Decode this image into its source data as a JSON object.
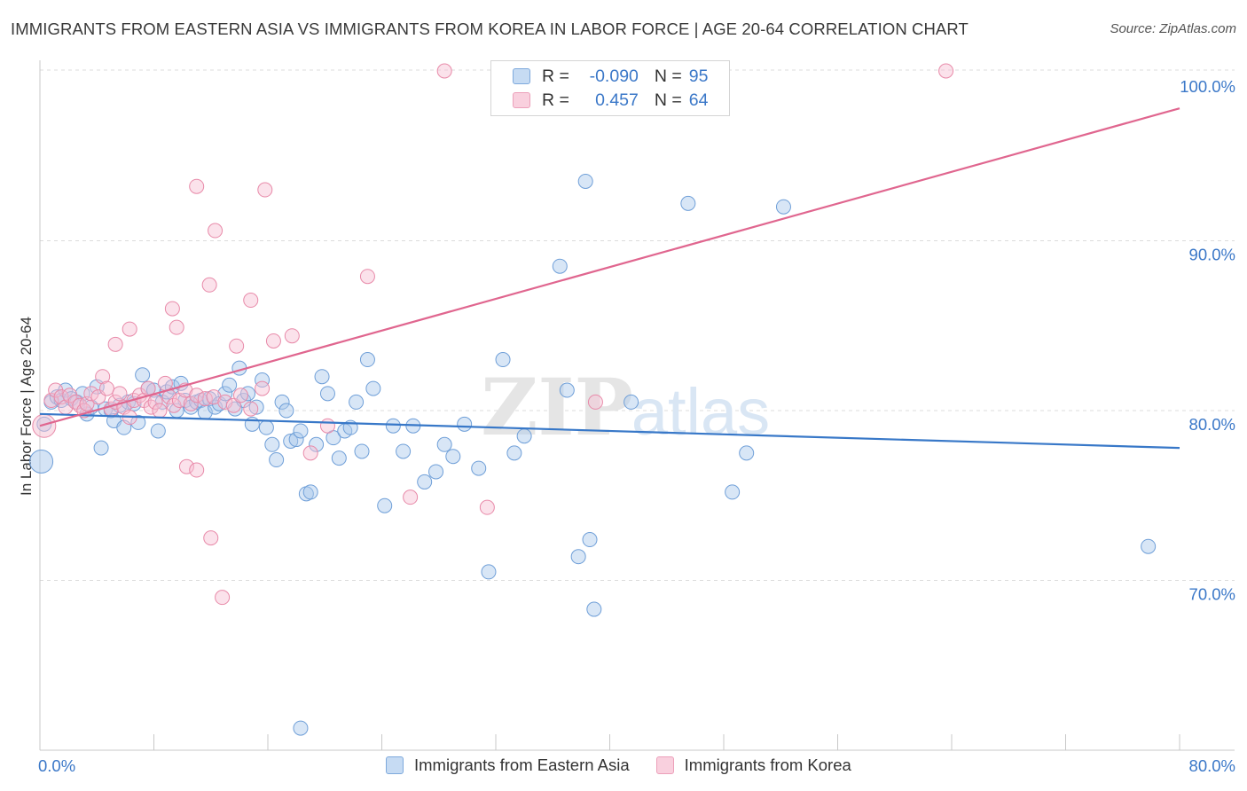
{
  "header": {
    "title": "IMMIGRANTS FROM EASTERN ASIA VS IMMIGRANTS FROM KOREA IN LABOR FORCE | AGE 20-64 CORRELATION CHART",
    "source": "Source: ZipAtlas.com"
  },
  "watermark": {
    "zip": "ZIP",
    "atlas": "atlas"
  },
  "stats_box": {
    "rows": [
      {
        "r_label": "R =",
        "r_value": "-0.090",
        "n_label": "N =",
        "n_value": "95",
        "color": "#9ec3eb"
      },
      {
        "r_label": "R =",
        "r_value": "0.457",
        "n_label": "N =",
        "n_value": "64",
        "color": "#f4b2c8"
      }
    ]
  },
  "legend": {
    "items": [
      {
        "label": "Immigrants from Eastern Asia",
        "color": "#9ec3eb"
      },
      {
        "label": "Immigrants from Korea",
        "color": "#f4b2c8"
      }
    ]
  },
  "colors": {
    "blue_fill": "#a9c8ec",
    "blue_stroke": "#6f9fd8",
    "blue_line": "#3878c8",
    "pink_fill": "#f6bfd2",
    "pink_stroke": "#e88aa9",
    "pink_line": "#e0668f",
    "tick_label": "#3b78c8",
    "grid": "#dcdcdc"
  },
  "chart_data": {
    "type": "scatter",
    "title": "IMMIGRANTS FROM EASTERN ASIA VS IMMIGRANTS FROM KOREA IN LABOR FORCE | AGE 20-64 CORRELATION CHART",
    "xlabel": "",
    "ylabel": "In Labor Force | Age 20-64",
    "xlim": [
      0,
      80
    ],
    "ylim": [
      60,
      102
    ],
    "x_tick_labels": [
      {
        "value": 0,
        "label": "0.0%"
      },
      {
        "value": 80,
        "label": "80.0%"
      }
    ],
    "y_tick_labels": [
      {
        "value": 70,
        "label": "70.0%"
      },
      {
        "value": 80,
        "label": "80.0%"
      },
      {
        "value": 90,
        "label": "90.0%"
      },
      {
        "value": 100,
        "label": "100.0%"
      }
    ],
    "grid": "horizontal dashed",
    "legend_position": "bottom-center",
    "series": [
      {
        "name": "Immigrants from Eastern Asia",
        "r": -0.09,
        "n": 95,
        "trend": {
          "x": [
            0,
            80
          ],
          "y": [
            79.8,
            77.8
          ]
        },
        "points": [
          [
            0.1,
            77.0
          ],
          [
            0.3,
            79.2
          ],
          [
            0.8,
            80.5
          ],
          [
            1.2,
            80.8
          ],
          [
            1.5,
            80.6
          ],
          [
            1.8,
            81.2
          ],
          [
            2.2,
            80.7
          ],
          [
            2.6,
            80.5
          ],
          [
            3.0,
            81.0
          ],
          [
            3.3,
            79.8
          ],
          [
            3.6,
            80.2
          ],
          [
            4.0,
            81.4
          ],
          [
            4.3,
            77.8
          ],
          [
            4.6,
            80.1
          ],
          [
            5.0,
            80.0
          ],
          [
            5.2,
            79.4
          ],
          [
            5.6,
            80.3
          ],
          [
            5.9,
            79.0
          ],
          [
            6.2,
            80.5
          ],
          [
            6.6,
            80.4
          ],
          [
            6.9,
            79.3
          ],
          [
            7.2,
            82.1
          ],
          [
            7.6,
            81.3
          ],
          [
            8.0,
            81.2
          ],
          [
            8.3,
            78.8
          ],
          [
            8.6,
            80.5
          ],
          [
            8.9,
            81.1
          ],
          [
            9.3,
            81.4
          ],
          [
            9.6,
            80.0
          ],
          [
            9.9,
            81.6
          ],
          [
            10.2,
            80.6
          ],
          [
            10.6,
            80.2
          ],
          [
            11.0,
            80.5
          ],
          [
            11.3,
            80.6
          ],
          [
            11.6,
            79.9
          ],
          [
            11.9,
            80.7
          ],
          [
            12.3,
            80.2
          ],
          [
            12.6,
            80.4
          ],
          [
            13.0,
            81.0
          ],
          [
            13.3,
            81.5
          ],
          [
            13.7,
            80.1
          ],
          [
            14.0,
            82.5
          ],
          [
            14.3,
            80.6
          ],
          [
            14.6,
            81.0
          ],
          [
            14.9,
            79.2
          ],
          [
            15.2,
            80.2
          ],
          [
            15.6,
            81.8
          ],
          [
            15.9,
            79.0
          ],
          [
            16.3,
            78.0
          ],
          [
            16.6,
            77.1
          ],
          [
            17.0,
            80.5
          ],
          [
            17.3,
            80.0
          ],
          [
            17.6,
            78.2
          ],
          [
            18.0,
            78.3
          ],
          [
            18.3,
            78.8
          ],
          [
            18.7,
            75.1
          ],
          [
            19.0,
            75.2
          ],
          [
            19.4,
            78.0
          ],
          [
            19.8,
            82.0
          ],
          [
            20.2,
            81.0
          ],
          [
            20.6,
            78.4
          ],
          [
            21.0,
            77.2
          ],
          [
            21.4,
            78.8
          ],
          [
            21.8,
            79.0
          ],
          [
            22.2,
            80.5
          ],
          [
            22.6,
            77.6
          ],
          [
            23.0,
            83.0
          ],
          [
            23.4,
            81.3
          ],
          [
            24.2,
            74.4
          ],
          [
            24.8,
            79.1
          ],
          [
            25.5,
            77.6
          ],
          [
            26.2,
            79.1
          ],
          [
            27.0,
            75.8
          ],
          [
            27.8,
            76.4
          ],
          [
            28.4,
            78.0
          ],
          [
            29.0,
            77.3
          ],
          [
            29.8,
            79.2
          ],
          [
            30.8,
            76.6
          ],
          [
            31.5,
            70.5
          ],
          [
            32.5,
            83.0
          ],
          [
            33.3,
            77.5
          ],
          [
            34.0,
            78.5
          ],
          [
            36.5,
            88.5
          ],
          [
            37.0,
            81.2
          ],
          [
            37.8,
            71.4
          ],
          [
            38.3,
            93.5
          ],
          [
            38.6,
            72.4
          ],
          [
            38.9,
            68.3
          ],
          [
            41.5,
            80.5
          ],
          [
            45.5,
            92.2
          ],
          [
            48.6,
            75.2
          ],
          [
            49.6,
            77.5
          ],
          [
            52.2,
            92.0
          ],
          [
            77.8,
            72.0
          ],
          [
            18.3,
            61.3
          ]
        ]
      },
      {
        "name": "Immigrants from Korea",
        "r": 0.457,
        "n": 64,
        "trend": {
          "x": [
            0,
            80
          ],
          "y": [
            79.1,
            97.8
          ]
        },
        "points": [
          [
            0.3,
            79.1
          ],
          [
            0.8,
            80.6
          ],
          [
            1.1,
            81.2
          ],
          [
            1.5,
            80.8
          ],
          [
            1.8,
            80.2
          ],
          [
            2.1,
            80.9
          ],
          [
            2.5,
            80.5
          ],
          [
            2.8,
            80.3
          ],
          [
            3.1,
            80.0
          ],
          [
            3.3,
            80.4
          ],
          [
            3.6,
            81.0
          ],
          [
            4.1,
            80.8
          ],
          [
            4.4,
            82.0
          ],
          [
            4.7,
            81.3
          ],
          [
            5.0,
            80.1
          ],
          [
            5.3,
            80.5
          ],
          [
            5.6,
            81.0
          ],
          [
            5.9,
            80.2
          ],
          [
            6.3,
            79.6
          ],
          [
            6.6,
            80.6
          ],
          [
            7.0,
            80.9
          ],
          [
            7.3,
            80.6
          ],
          [
            7.6,
            81.3
          ],
          [
            7.8,
            80.2
          ],
          [
            8.1,
            80.5
          ],
          [
            8.4,
            80.0
          ],
          [
            8.8,
            81.6
          ],
          [
            9.1,
            80.8
          ],
          [
            9.4,
            80.3
          ],
          [
            9.8,
            80.6
          ],
          [
            10.2,
            81.2
          ],
          [
            10.6,
            80.4
          ],
          [
            11.0,
            80.9
          ],
          [
            11.6,
            80.7
          ],
          [
            12.2,
            80.8
          ],
          [
            13.0,
            80.5
          ],
          [
            13.6,
            80.3
          ],
          [
            14.1,
            80.9
          ],
          [
            14.8,
            80.1
          ],
          [
            15.6,
            81.3
          ],
          [
            5.3,
            83.9
          ],
          [
            6.3,
            84.8
          ],
          [
            9.3,
            86.0
          ],
          [
            9.6,
            84.9
          ],
          [
            11.0,
            93.2
          ],
          [
            11.9,
            87.4
          ],
          [
            12.3,
            90.6
          ],
          [
            13.8,
            83.8
          ],
          [
            14.8,
            86.5
          ],
          [
            15.8,
            93.0
          ],
          [
            16.4,
            84.1
          ],
          [
            17.7,
            84.4
          ],
          [
            19.0,
            77.5
          ],
          [
            20.2,
            79.1
          ],
          [
            23.0,
            87.9
          ],
          [
            26.0,
            74.9
          ],
          [
            28.4,
            100.0
          ],
          [
            31.4,
            74.3
          ],
          [
            39.0,
            80.5
          ],
          [
            63.6,
            100.0
          ],
          [
            10.3,
            76.7
          ],
          [
            11.0,
            76.5
          ],
          [
            12.0,
            72.5
          ],
          [
            12.8,
            69.0
          ]
        ]
      }
    ]
  }
}
